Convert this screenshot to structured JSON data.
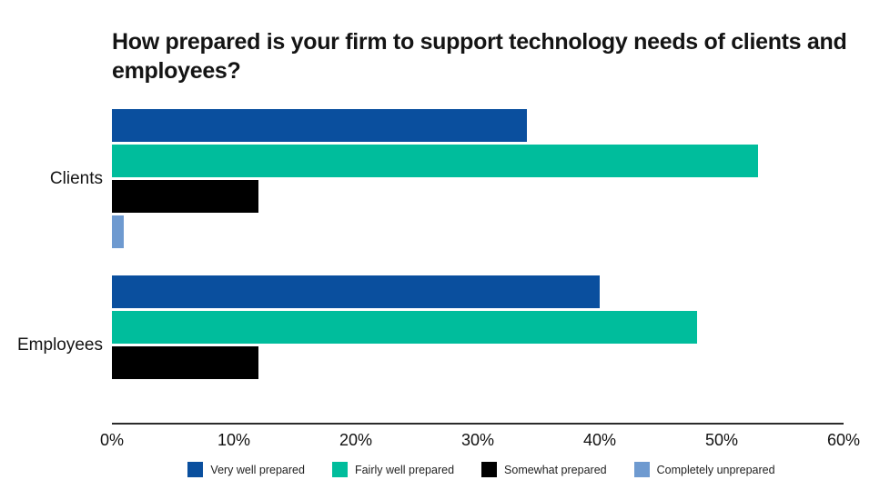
{
  "chart_data": {
    "type": "bar",
    "orientation": "horizontal",
    "title": "How prepared is your firm to support technology needs of clients and employees?",
    "categories": [
      "Clients",
      "Employees"
    ],
    "series": [
      {
        "name": "Very well prepared",
        "color": "#0a4f9e",
        "values": [
          34,
          40
        ]
      },
      {
        "name": "Fairly well prepared",
        "color": "#00bd9c",
        "values": [
          53,
          48
        ]
      },
      {
        "name": "Somewhat prepared",
        "color": "#000000",
        "values": [
          12,
          12
        ]
      },
      {
        "name": "Completely unprepared",
        "color": "#6e9ad0",
        "values": [
          1,
          0
        ]
      }
    ],
    "xlabel": "",
    "ylabel": "",
    "x_ticks": [
      "0%",
      "10%",
      "20%",
      "30%",
      "40%",
      "50%",
      "60%"
    ],
    "xlim": [
      0,
      60
    ],
    "grid": false,
    "legend_position": "bottom",
    "text_color": "#141414",
    "axis_line_color": "#2b2b2b"
  }
}
